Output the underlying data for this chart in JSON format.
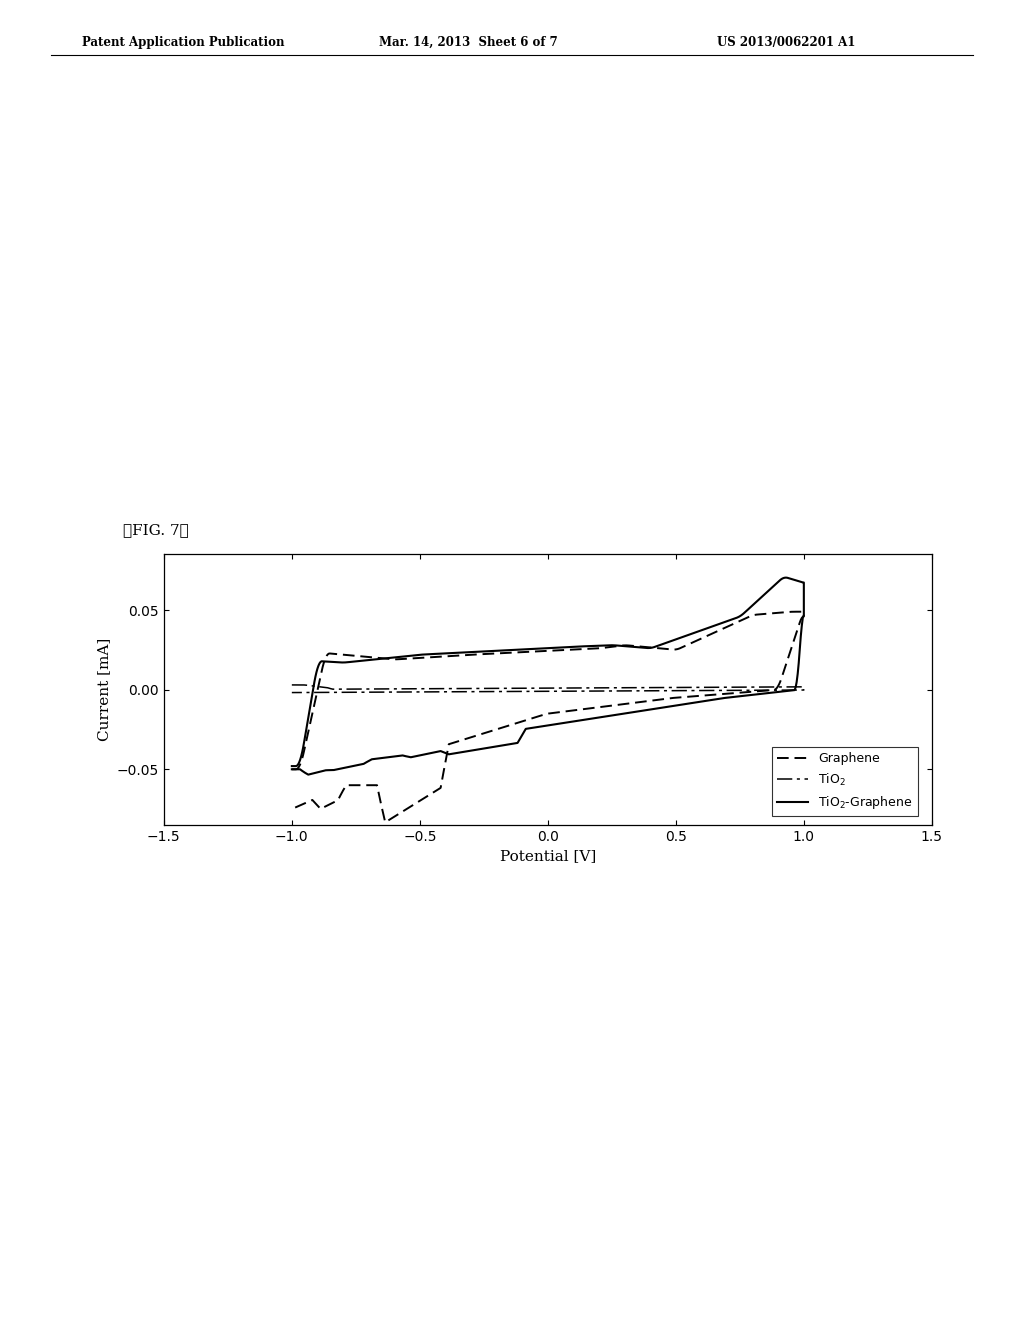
{
  "header_left": "Patent Application Publication",
  "header_center": "Mar. 14, 2013  Sheet 6 of 7",
  "header_right": "US 2013/0062201 A1",
  "fig_label": "【FIG. 7】",
  "xlabel": "Potential [V]",
  "ylabel": "Current [mA]",
  "xlim": [
    -1.5,
    1.5
  ],
  "ylim": [
    -0.085,
    0.085
  ],
  "xticks": [
    -1.5,
    -1.0,
    -0.5,
    0.0,
    0.5,
    1.0,
    1.5
  ],
  "yticks": [
    -0.05,
    0.0,
    0.05
  ],
  "background_color": "#ffffff",
  "plot_bg_color": "#ffffff"
}
